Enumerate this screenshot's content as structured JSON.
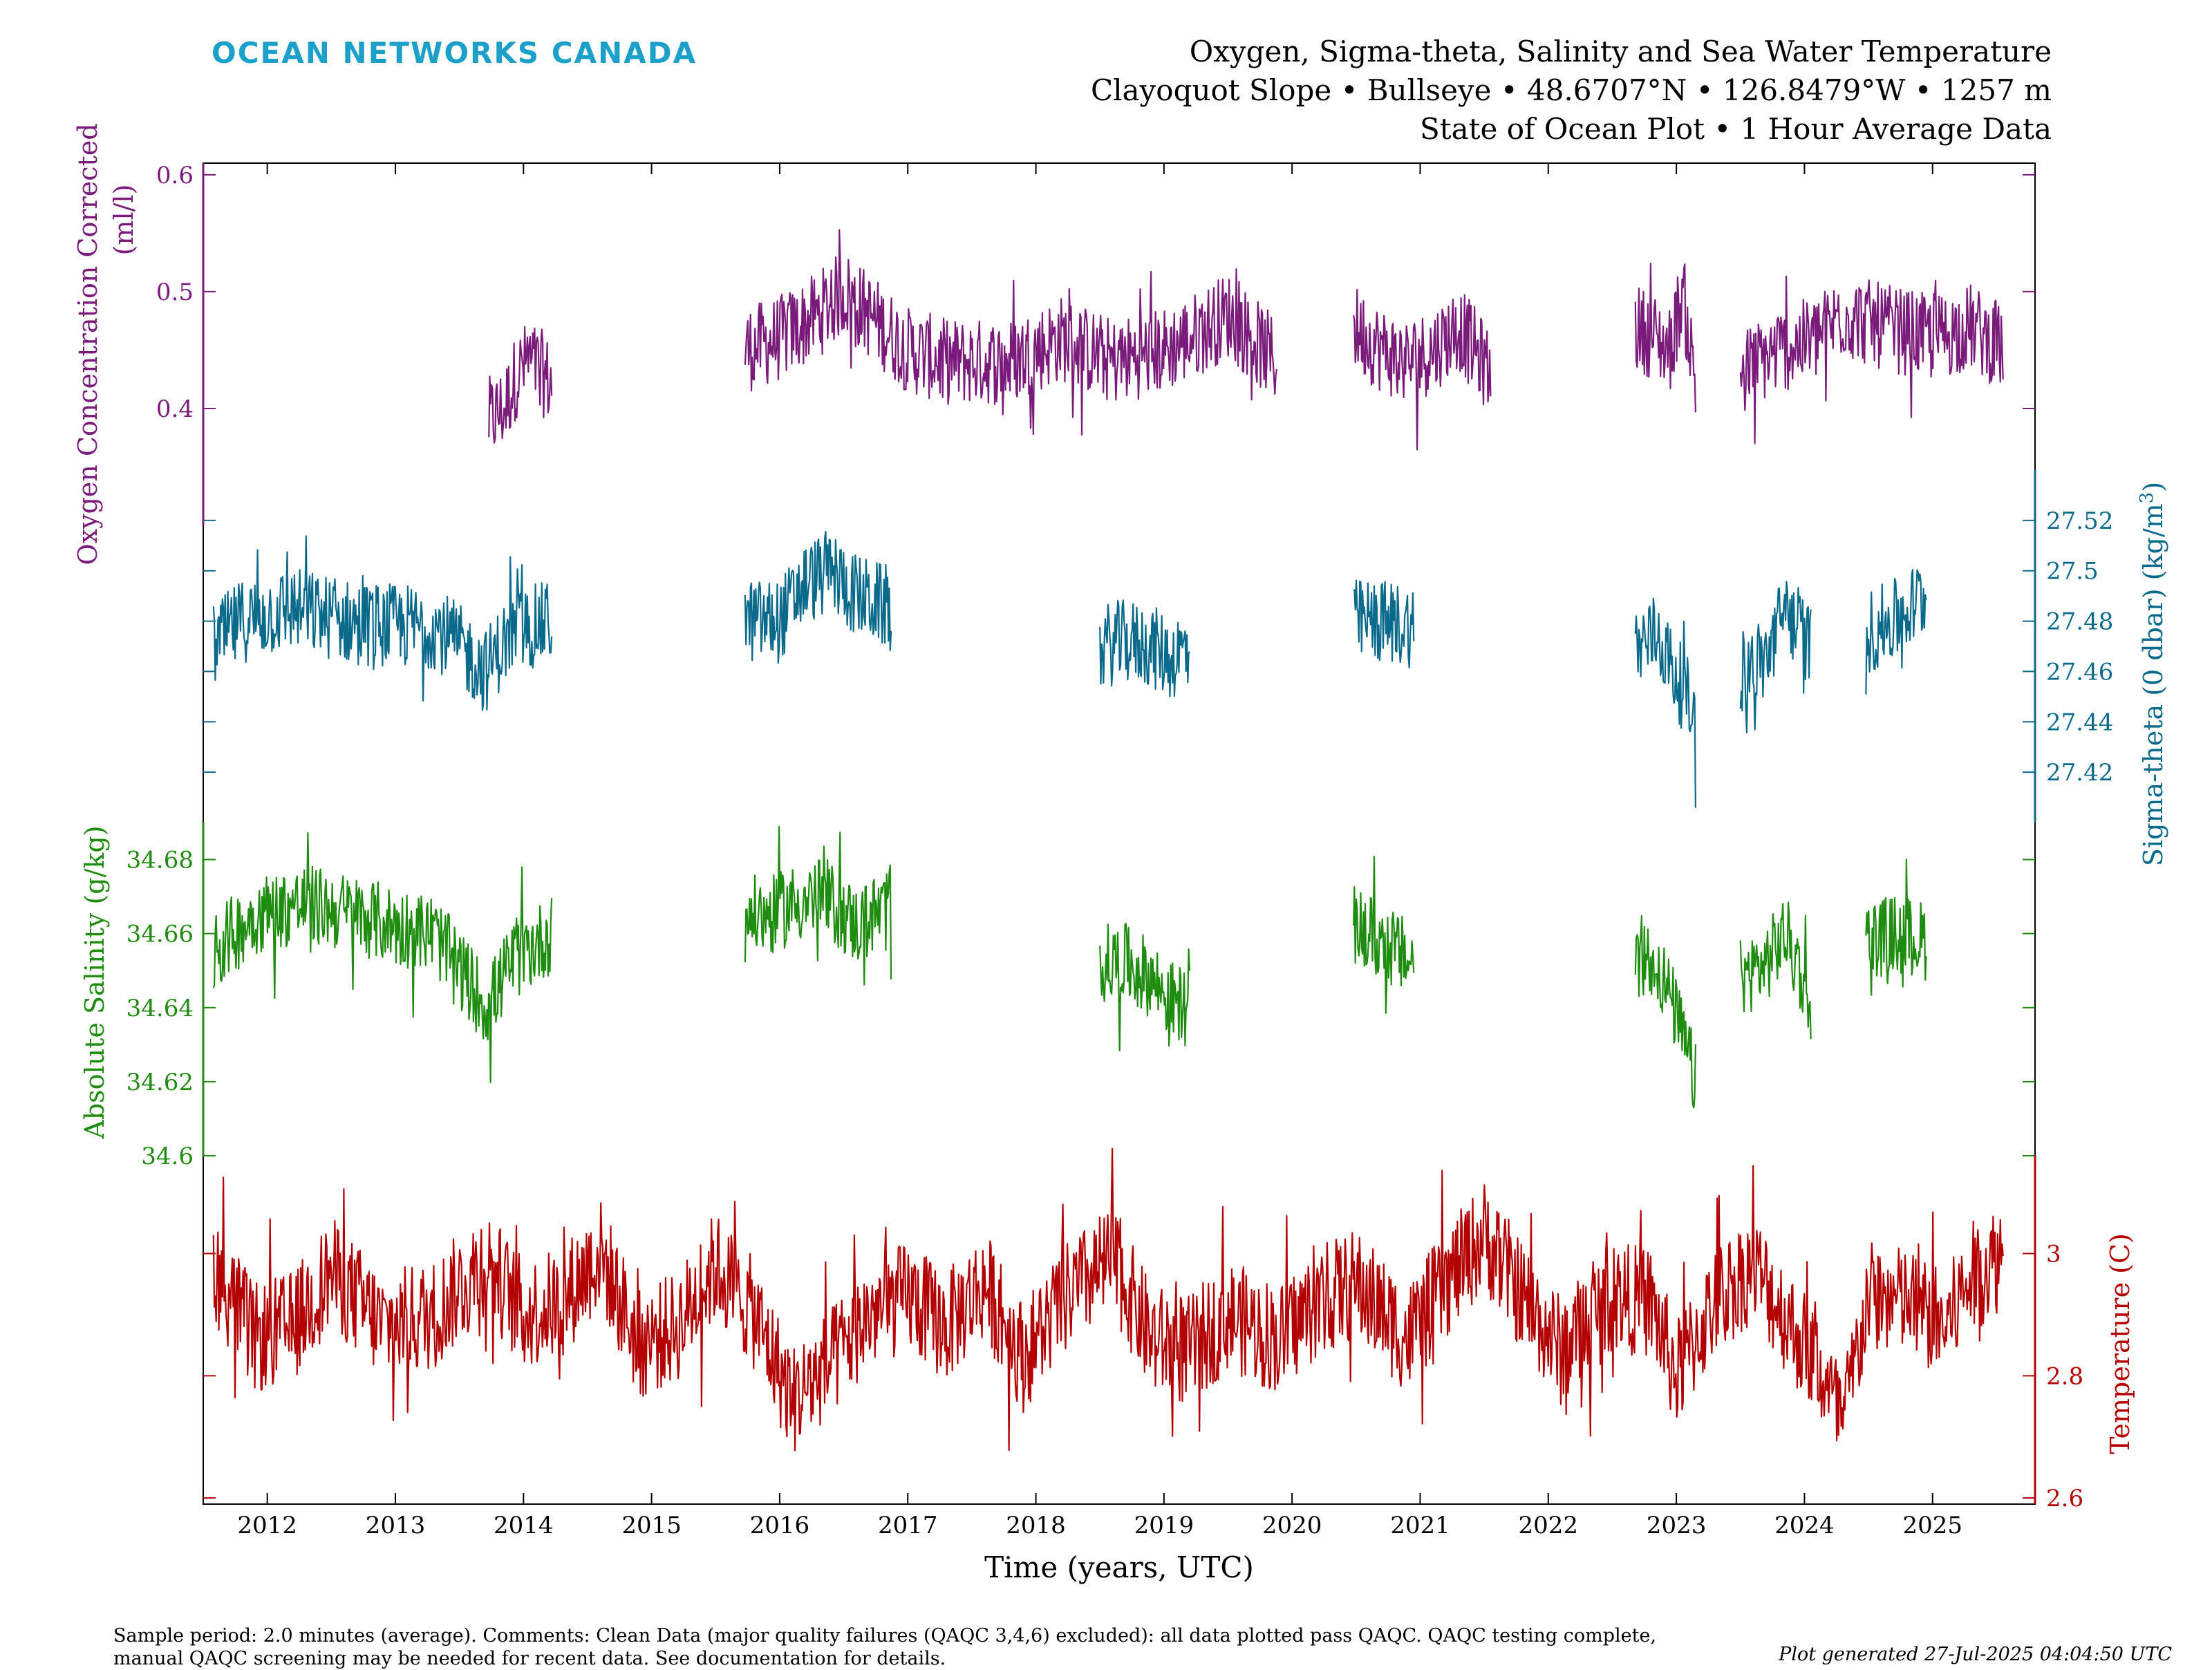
{
  "header": {
    "brand": "OCEAN NETWORKS CANADA",
    "title_line1": "Oxygen, Sigma-theta, Salinity and Sea Water Temperature",
    "title_line2": "Clayoquot Slope • Bullseye • 48.6707°N • 126.8479°W • 1257 m",
    "title_line3": "State of Ocean Plot • 1 Hour Average Data"
  },
  "footer": {
    "comment_line1": "Sample period: 2.0 minutes (average). Comments: Clean Data (major quality failures (QAQC 3,4,6) excluded): all data plotted pass QAQC. QAQC testing complete,",
    "comment_line2": "manual QAQC screening may be needed for recent data. See documentation for details.",
    "generated": "Plot generated 27-Jul-2025 04:04:50 UTC"
  },
  "chart_data": {
    "type": "line",
    "xlabel": "Time (years, UTC)",
    "xlim": [
      2011.5,
      2025.8
    ],
    "x_ticks": [
      "2012",
      "2013",
      "2014",
      "2015",
      "2016",
      "2017",
      "2018",
      "2019",
      "2020",
      "2021",
      "2022",
      "2023",
      "2024",
      "2025"
    ],
    "series": [
      {
        "key": "oxygen",
        "ylabel": "Oxygen Concentration Corrected (ml/l)",
        "ylabel_line1": "Oxygen Concentration Corrected",
        "ylabel_line2": "(ml/l)",
        "axis_side": "left",
        "color": "#7a1a7a",
        "ylim": [
          0.3,
          0.61
        ],
        "ticks": [
          0.4,
          0.5,
          0.6
        ],
        "tick_labels": [
          "0.4",
          "0.5",
          "0.6"
        ],
        "segments": [
          {
            "start": 2013.73,
            "end": 2014.22,
            "points": [
              [
                2013.73,
                0.39
              ],
              [
                2013.85,
                0.4
              ],
              [
                2013.95,
                0.43
              ],
              [
                2014.05,
                0.44
              ],
              [
                2014.15,
                0.43
              ],
              [
                2014.22,
                0.42
              ]
            ]
          },
          {
            "start": 2015.73,
            "end": 2019.88,
            "points": [
              [
                2015.73,
                0.45
              ],
              [
                2016.0,
                0.46
              ],
              [
                2016.3,
                0.48
              ],
              [
                2016.5,
                0.5
              ],
              [
                2016.7,
                0.48
              ],
              [
                2017.0,
                0.45
              ],
              [
                2017.3,
                0.44
              ],
              [
                2017.8,
                0.44
              ],
              [
                2018.2,
                0.46
              ],
              [
                2018.6,
                0.44
              ],
              [
                2019.0,
                0.45
              ],
              [
                2019.2,
                0.46
              ],
              [
                2019.5,
                0.48
              ],
              [
                2019.88,
                0.44
              ]
            ]
          },
          {
            "start": 2020.48,
            "end": 2021.55,
            "points": [
              [
                2020.48,
                0.47
              ],
              [
                2020.7,
                0.45
              ],
              [
                2020.9,
                0.44
              ],
              [
                2021.1,
                0.45
              ],
              [
                2021.3,
                0.47
              ],
              [
                2021.55,
                0.43
              ]
            ]
          },
          {
            "start": 2022.68,
            "end": 2023.15,
            "points": [
              [
                2022.68,
                0.47
              ],
              [
                2022.85,
                0.46
              ],
              [
                2022.95,
                0.45
              ],
              [
                2023.05,
                0.5
              ],
              [
                2023.15,
                0.42
              ]
            ]
          },
          {
            "start": 2023.5,
            "end": 2025.55,
            "points": [
              [
                2023.5,
                0.43
              ],
              [
                2023.8,
                0.45
              ],
              [
                2024.1,
                0.46
              ],
              [
                2024.3,
                0.48
              ],
              [
                2024.6,
                0.47
              ],
              [
                2025.0,
                0.46
              ],
              [
                2025.3,
                0.47
              ],
              [
                2025.55,
                0.45
              ]
            ]
          }
        ]
      },
      {
        "key": "sigma",
        "ylabel": "Sigma-theta (0 dbar) (kg/m³)",
        "ylabel_main": "Sigma-theta (0 dbar) (kg/m",
        "ylabel_sup": "3",
        "ylabel_end": ")",
        "axis_side": "right",
        "color": "#0a6a8c",
        "ylim": [
          27.4,
          27.54
        ],
        "ticks": [
          27.42,
          27.44,
          27.46,
          27.48,
          27.5,
          27.52
        ],
        "tick_labels": [
          "27.42",
          "27.44",
          "27.46",
          "27.48",
          "27.5",
          "27.52"
        ],
        "segments": [
          {
            "start": 2011.58,
            "end": 2014.22,
            "points": [
              [
                2011.58,
                27.47
              ],
              [
                2011.8,
                27.48
              ],
              [
                2012.2,
                27.485
              ],
              [
                2012.6,
                27.48
              ],
              [
                2013.0,
                27.478
              ],
              [
                2013.3,
                27.478
              ],
              [
                2013.5,
                27.47
              ],
              [
                2013.7,
                27.46
              ],
              [
                2013.9,
                27.475
              ],
              [
                2014.22,
                27.48
              ]
            ]
          },
          {
            "start": 2015.73,
            "end": 2016.87,
            "points": [
              [
                2015.73,
                27.48
              ],
              [
                2016.0,
                27.48
              ],
              [
                2016.2,
                27.495
              ],
              [
                2016.4,
                27.5
              ],
              [
                2016.6,
                27.49
              ],
              [
                2016.87,
                27.485
              ]
            ]
          },
          {
            "start": 2018.5,
            "end": 2019.2,
            "points": [
              [
                2018.5,
                27.47
              ],
              [
                2018.7,
                27.472
              ],
              [
                2018.9,
                27.47
              ],
              [
                2019.05,
                27.465
              ],
              [
                2019.2,
                27.47
              ]
            ]
          },
          {
            "start": 2020.48,
            "end": 2020.95,
            "points": [
              [
                2020.48,
                27.48
              ],
              [
                2020.7,
                27.48
              ],
              [
                2020.95,
                27.478
              ]
            ]
          },
          {
            "start": 2022.68,
            "end": 2023.15,
            "points": [
              [
                2022.68,
                27.47
              ],
              [
                2022.85,
                27.475
              ],
              [
                2022.98,
                27.46
              ],
              [
                2023.08,
                27.45
              ],
              [
                2023.15,
                27.44
              ]
            ]
          },
          {
            "start": 2023.5,
            "end": 2024.05,
            "points": [
              [
                2023.5,
                27.46
              ],
              [
                2023.7,
                27.465
              ],
              [
                2023.85,
                27.485
              ],
              [
                2024.05,
                27.47
              ]
            ]
          },
          {
            "start": 2024.48,
            "end": 2024.95,
            "points": [
              [
                2024.48,
                27.475
              ],
              [
                2024.7,
                27.48
              ],
              [
                2024.95,
                27.49
              ]
            ]
          }
        ]
      },
      {
        "key": "salinity",
        "ylabel": "Absolute Salinity (g/kg)",
        "axis_side": "left",
        "color": "#1e8c0e",
        "ylim": [
          34.6,
          34.69
        ],
        "ticks": [
          34.6,
          34.62,
          34.64,
          34.66,
          34.68
        ],
        "tick_labels": [
          "34.6",
          "34.62",
          "34.64",
          "34.66",
          "34.68"
        ],
        "segments": [
          {
            "start": 2011.58,
            "end": 2014.22,
            "points": [
              [
                2011.58,
                34.655
              ],
              [
                2011.9,
                34.665
              ],
              [
                2012.3,
                34.668
              ],
              [
                2012.7,
                34.665
              ],
              [
                2013.0,
                34.662
              ],
              [
                2013.3,
                34.66
              ],
              [
                2013.55,
                34.648
              ],
              [
                2013.72,
                34.64
              ],
              [
                2013.9,
                34.652
              ],
              [
                2014.22,
                34.66
              ]
            ]
          },
          {
            "start": 2015.73,
            "end": 2016.87,
            "points": [
              [
                2015.73,
                34.665
              ],
              [
                2015.95,
                34.665
              ],
              [
                2016.1,
                34.668
              ],
              [
                2016.35,
                34.67
              ],
              [
                2016.6,
                34.662
              ],
              [
                2016.87,
                34.668
              ]
            ]
          },
          {
            "start": 2018.5,
            "end": 2019.2,
            "points": [
              [
                2018.5,
                34.652
              ],
              [
                2018.7,
                34.652
              ],
              [
                2018.9,
                34.648
              ],
              [
                2019.05,
                34.642
              ],
              [
                2019.2,
                34.64
              ]
            ]
          },
          {
            "start": 2020.48,
            "end": 2020.95,
            "points": [
              [
                2020.48,
                34.662
              ],
              [
                2020.7,
                34.658
              ],
              [
                2020.95,
                34.652
              ]
            ]
          },
          {
            "start": 2022.68,
            "end": 2023.15,
            "points": [
              [
                2022.68,
                34.655
              ],
              [
                2022.85,
                34.652
              ],
              [
                2022.98,
                34.64
              ],
              [
                2023.08,
                34.628
              ],
              [
                2023.15,
                34.62
              ]
            ]
          },
          {
            "start": 2023.5,
            "end": 2024.05,
            "points": [
              [
                2023.5,
                34.648
              ],
              [
                2023.7,
                34.652
              ],
              [
                2023.85,
                34.66
              ],
              [
                2024.05,
                34.642
              ]
            ]
          },
          {
            "start": 2024.48,
            "end": 2024.95,
            "points": [
              [
                2024.48,
                34.658
              ],
              [
                2024.7,
                34.66
              ],
              [
                2024.95,
                34.658
              ]
            ]
          }
        ]
      },
      {
        "key": "temperature",
        "ylabel": "Temperature (C)",
        "axis_side": "right",
        "color": "#b40000",
        "ylim": [
          2.59,
          3.16
        ],
        "ticks": [
          2.6,
          2.8,
          3.0
        ],
        "tick_labels": [
          "2.6",
          "2.8",
          "3"
        ],
        "segments": [
          {
            "start": 2011.58,
            "end": 2025.55,
            "points": [
              [
                2011.58,
                2.98
              ],
              [
                2011.9,
                2.86
              ],
              [
                2012.2,
                2.88
              ],
              [
                2012.5,
                2.97
              ],
              [
                2012.9,
                2.88
              ],
              [
                2013.3,
                2.9
              ],
              [
                2013.7,
                2.99
              ],
              [
                2014.0,
                2.9
              ],
              [
                2014.3,
                2.92
              ],
              [
                2014.6,
                3.0
              ],
              [
                2014.9,
                2.85
              ],
              [
                2015.2,
                2.88
              ],
              [
                2015.5,
                2.98
              ],
              [
                2015.8,
                2.9
              ],
              [
                2016.1,
                2.76
              ],
              [
                2016.4,
                2.82
              ],
              [
                2016.7,
                2.9
              ],
              [
                2017.0,
                2.93
              ],
              [
                2017.3,
                2.88
              ],
              [
                2017.6,
                2.95
              ],
              [
                2017.9,
                2.83
              ],
              [
                2018.2,
                2.92
              ],
              [
                2018.6,
                2.99
              ],
              [
                2018.9,
                2.86
              ],
              [
                2019.2,
                2.84
              ],
              [
                2019.5,
                2.9
              ],
              [
                2019.9,
                2.86
              ],
              [
                2020.2,
                2.92
              ],
              [
                2020.5,
                2.95
              ],
              [
                2020.9,
                2.86
              ],
              [
                2021.2,
                2.95
              ],
              [
                2021.5,
                3.03
              ],
              [
                2021.8,
                2.93
              ],
              [
                2022.1,
                2.84
              ],
              [
                2022.5,
                2.93
              ],
              [
                2022.8,
                2.92
              ],
              [
                2023.0,
                2.8
              ],
              [
                2023.3,
                2.92
              ],
              [
                2023.6,
                2.98
              ],
              [
                2023.9,
                2.88
              ],
              [
                2024.1,
                2.82
              ],
              [
                2024.3,
                2.72
              ],
              [
                2024.5,
                2.93
              ],
              [
                2024.8,
                2.92
              ],
              [
                2025.1,
                2.88
              ],
              [
                2025.3,
                2.96
              ],
              [
                2025.55,
                3.0
              ]
            ]
          }
        ]
      }
    ]
  }
}
